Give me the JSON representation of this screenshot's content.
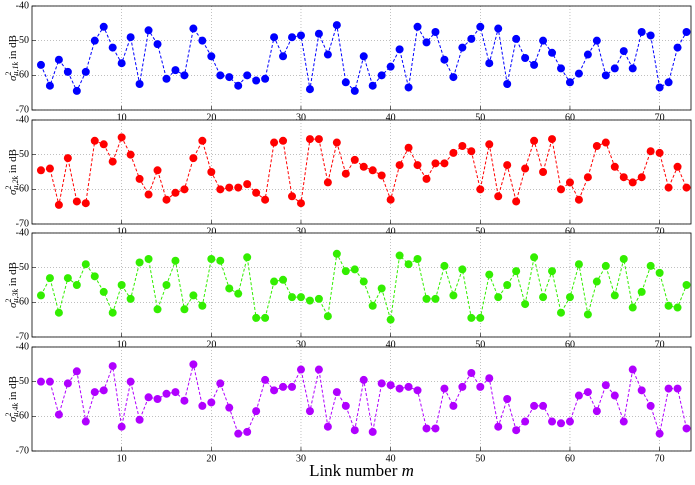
{
  "chart_data": [
    {
      "type": "line",
      "xlim": [
        0,
        73.5
      ],
      "ylim": [
        -70,
        -40
      ],
      "xticks": [
        10,
        20,
        30,
        40,
        50,
        60,
        70
      ],
      "yticks": [
        -40,
        -50,
        -60,
        -70
      ],
      "grid": true,
      "marker": "o",
      "linestyle": "dashed",
      "ylabel": {
        "symbol": "σ",
        "sup": "2",
        "sub": "u,1k",
        "unit": "in dB"
      },
      "x": [
        1,
        2,
        3,
        4,
        5,
        6,
        7,
        8,
        9,
        10,
        11,
        12,
        13,
        14,
        15,
        16,
        17,
        18,
        19,
        20,
        21,
        22,
        23,
        24,
        25,
        26,
        27,
        28,
        29,
        30,
        31,
        32,
        33,
        34,
        35,
        36,
        37,
        38,
        39,
        40,
        41,
        42,
        43,
        44,
        45,
        46,
        47,
        48,
        49,
        50,
        51,
        52,
        53,
        54,
        55,
        56,
        57,
        58,
        59,
        60,
        61,
        62,
        63,
        64,
        65,
        66,
        67,
        68,
        69,
        70,
        71,
        72,
        73
      ],
      "series": [
        {
          "color": "#0000ff",
          "values": [
            -57,
            -63,
            -55.5,
            -59,
            -64.5,
            -59,
            -50,
            -46,
            -52,
            -56.5,
            -49,
            -62.5,
            -47,
            -51,
            -61,
            -58.5,
            -60,
            -46.5,
            -50,
            -54.5,
            -60,
            -60.5,
            -63,
            -60,
            -61.5,
            -61,
            -49,
            -54.5,
            -49,
            -48.5,
            -64,
            -48,
            -54,
            -45.5,
            -62,
            -64.5,
            -54.5,
            -63,
            -60,
            -57.5,
            -52.5,
            -63.5,
            -46,
            -50.5,
            -47.5,
            -55.5,
            -60.5,
            -52,
            -49.5,
            -46,
            -56.5,
            -46.5,
            -62.5,
            -49.5,
            -55,
            -57,
            -50,
            -53.5,
            -58,
            -62,
            -59.5,
            -54,
            -50,
            -60,
            -58,
            -53,
            -58,
            -47.5,
            -48.5,
            -63.5,
            -62,
            -52,
            -47.5
          ]
        }
      ]
    },
    {
      "type": "line",
      "xlim": [
        0,
        73.5
      ],
      "ylim": [
        -70,
        -40
      ],
      "xticks": [
        10,
        20,
        30,
        40,
        50,
        60,
        70
      ],
      "yticks": [
        -40,
        -50,
        -60,
        -70
      ],
      "grid": true,
      "marker": "o",
      "linestyle": "dashed",
      "ylabel": {
        "symbol": "σ",
        "sup": "2",
        "sub": "u,2k",
        "unit": "in dB"
      },
      "x": [
        1,
        2,
        3,
        4,
        5,
        6,
        7,
        8,
        9,
        10,
        11,
        12,
        13,
        14,
        15,
        16,
        17,
        18,
        19,
        20,
        21,
        22,
        23,
        24,
        25,
        26,
        27,
        28,
        29,
        30,
        31,
        32,
        33,
        34,
        35,
        36,
        37,
        38,
        39,
        40,
        41,
        42,
        43,
        44,
        45,
        46,
        47,
        48,
        49,
        50,
        51,
        52,
        53,
        54,
        55,
        56,
        57,
        58,
        59,
        60,
        61,
        62,
        63,
        64,
        65,
        66,
        67,
        68,
        69,
        70,
        71,
        72,
        73
      ],
      "series": [
        {
          "color": "#ff0000",
          "values": [
            -54.5,
            -54,
            -64.5,
            -51,
            -63.5,
            -64,
            -46,
            -47,
            -52,
            -45,
            -50,
            -57,
            -61.5,
            -54.5,
            -63,
            -61,
            -60,
            -51,
            -46,
            -55,
            -60,
            -59.5,
            -59.5,
            -58.5,
            -61,
            -63,
            -46.5,
            -46,
            -62,
            -64,
            -45.5,
            -45.5,
            -58,
            -46.5,
            -55.5,
            -51.5,
            -53.5,
            -54.5,
            -56,
            -63,
            -53,
            -48,
            -53,
            -57,
            -52.5,
            -52.5,
            -49.5,
            -47.5,
            -49,
            -60,
            -47,
            -62,
            -53,
            -63.5,
            -54,
            -46,
            -55,
            -45.5,
            -60,
            -58,
            -63,
            -56.5,
            -47.5,
            -46.5,
            -53.5,
            -56.5,
            -58,
            -56.5,
            -49,
            -49.5,
            -59.5,
            -53.5,
            -59.5
          ]
        }
      ]
    },
    {
      "type": "line",
      "xlim": [
        0,
        73.5
      ],
      "ylim": [
        -70,
        -40
      ],
      "xticks": [
        10,
        20,
        30,
        40,
        50,
        60,
        70
      ],
      "yticks": [
        -40,
        -50,
        -60,
        -70
      ],
      "grid": true,
      "marker": "o",
      "linestyle": "dashed",
      "ylabel": {
        "symbol": "σ",
        "sup": "2",
        "sub": "u,3k",
        "unit": "in dB"
      },
      "x": [
        1,
        2,
        3,
        4,
        5,
        6,
        7,
        8,
        9,
        10,
        11,
        12,
        13,
        14,
        15,
        16,
        17,
        18,
        19,
        20,
        21,
        22,
        23,
        24,
        25,
        26,
        27,
        28,
        29,
        30,
        31,
        32,
        33,
        34,
        35,
        36,
        37,
        38,
        39,
        40,
        41,
        42,
        43,
        44,
        45,
        46,
        47,
        48,
        49,
        50,
        51,
        52,
        53,
        54,
        55,
        56,
        57,
        58,
        59,
        60,
        61,
        62,
        63,
        64,
        65,
        66,
        67,
        68,
        69,
        70,
        71,
        72,
        73
      ],
      "series": [
        {
          "color": "#33ee00",
          "values": [
            -58,
            -53,
            -63,
            -53,
            -55,
            -49,
            -52.5,
            -57,
            -63,
            -55,
            -59,
            -48.5,
            -47.5,
            -62,
            -55,
            -48,
            -62,
            -58,
            -61,
            -47.5,
            -48,
            -56,
            -57.5,
            -47,
            -64.5,
            -64.5,
            -54,
            -53.5,
            -58.5,
            -58.5,
            -59.5,
            -59,
            -64,
            -46,
            -51,
            -50.5,
            -54,
            -61,
            -56,
            -65,
            -46.5,
            -49,
            -47.5,
            -59,
            -59,
            -49.5,
            -58,
            -50.5,
            -64.5,
            -64.5,
            -52,
            -58.5,
            -55,
            -51,
            -60.5,
            -47,
            -58.5,
            -51,
            -63,
            -58.5,
            -49,
            -63.5,
            -54,
            -49.5,
            -58,
            -47.5,
            -61.5,
            -57,
            -49.5,
            -51.5,
            -61,
            -61.5,
            -55
          ]
        }
      ]
    },
    {
      "type": "line",
      "xlim": [
        0,
        73.5
      ],
      "ylim": [
        -70,
        -40
      ],
      "xticks": [
        10,
        20,
        30,
        40,
        50,
        60,
        70
      ],
      "yticks": [
        -40,
        -50,
        -60,
        -70
      ],
      "grid": true,
      "marker": "o",
      "linestyle": "dashed",
      "ylabel": {
        "symbol": "σ",
        "sup": "2",
        "sub": "u,4k",
        "unit": "in dB"
      },
      "xlabel": {
        "text": "Link number",
        "var": "m"
      },
      "x": [
        1,
        2,
        3,
        4,
        5,
        6,
        7,
        8,
        9,
        10,
        11,
        12,
        13,
        14,
        15,
        16,
        17,
        18,
        19,
        20,
        21,
        22,
        23,
        24,
        25,
        26,
        27,
        28,
        29,
        30,
        31,
        32,
        33,
        34,
        35,
        36,
        37,
        38,
        39,
        40,
        41,
        42,
        43,
        44,
        45,
        46,
        47,
        48,
        49,
        50,
        51,
        52,
        53,
        54,
        55,
        56,
        57,
        58,
        59,
        60,
        61,
        62,
        63,
        64,
        65,
        66,
        67,
        68,
        69,
        70,
        71,
        72,
        73
      ],
      "series": [
        {
          "color": "#b000ff",
          "values": [
            -50,
            -50,
            -59.5,
            -50.5,
            -47,
            -61.5,
            -53,
            -52.5,
            -45.5,
            -63,
            -50,
            -61,
            -54.5,
            -55,
            -53.5,
            -53,
            -55.5,
            -45,
            -57,
            -56,
            -50.5,
            -57.5,
            -65,
            -64.5,
            -58.5,
            -49.5,
            -52.5,
            -51.5,
            -51.5,
            -46.5,
            -58.5,
            -46.5,
            -63,
            -53,
            -57,
            -64,
            -49.5,
            -64.5,
            -50.5,
            -51,
            -52,
            -51.5,
            -52.5,
            -63.5,
            -63.5,
            -52,
            -57,
            -51.5,
            -47.5,
            -51.5,
            -49,
            -63,
            -55,
            -64,
            -61.5,
            -57,
            -57,
            -61.5,
            -62,
            -61.5,
            -54,
            -53,
            -58.5,
            -51,
            -54,
            -61.5,
            -46.5,
            -52.5,
            -57,
            -65,
            -52,
            -52,
            -63.5
          ]
        }
      ]
    }
  ]
}
